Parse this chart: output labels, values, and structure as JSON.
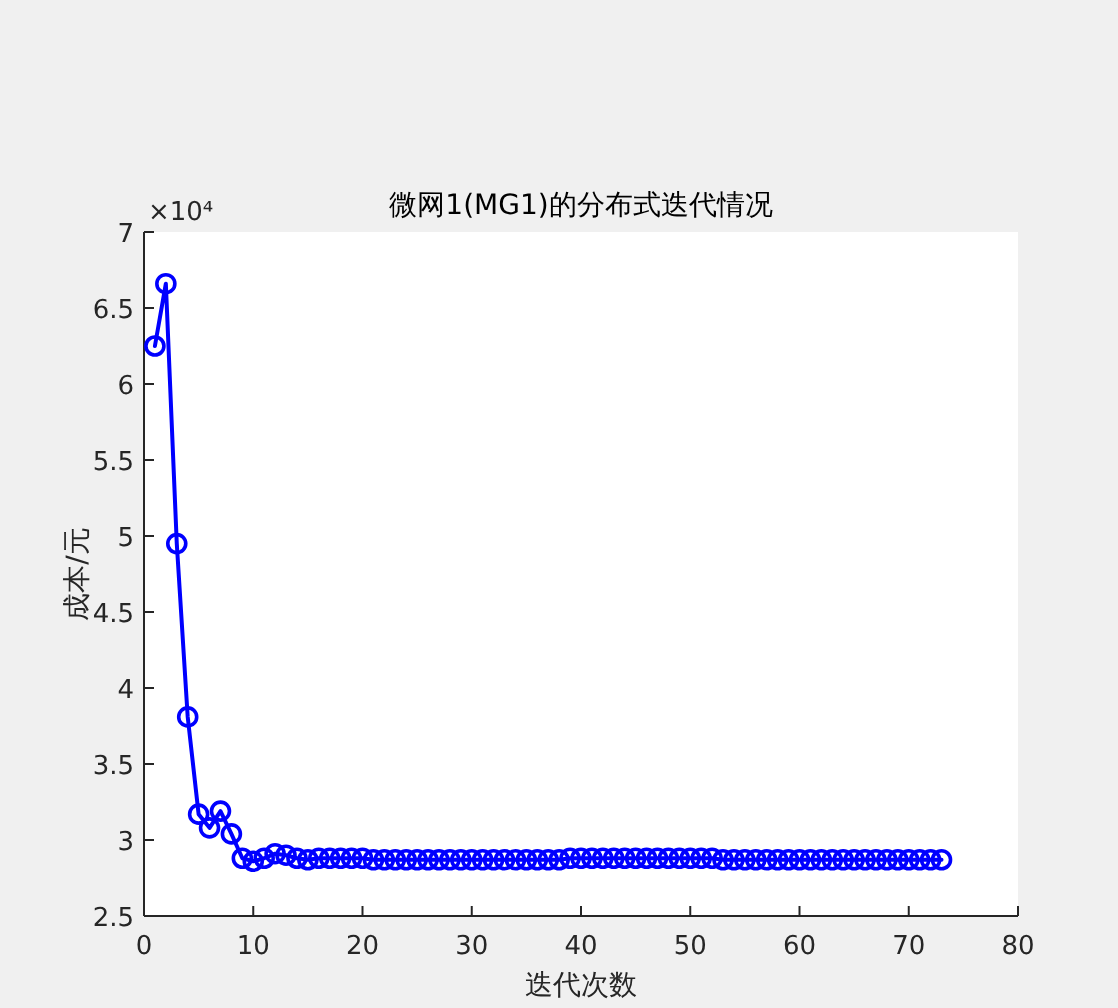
{
  "chart_data": {
    "type": "line",
    "title": "微网1(MG1)的分布式迭代情况",
    "xlabel": "迭代次数",
    "ylabel": "成本/元",
    "x": [
      1,
      2,
      3,
      4,
      5,
      6,
      7,
      8,
      9,
      10,
      11,
      12,
      13,
      14,
      15,
      16,
      17,
      18,
      19,
      20,
      21,
      22,
      23,
      24,
      25,
      26,
      27,
      28,
      29,
      30,
      31,
      32,
      33,
      34,
      35,
      36,
      37,
      38,
      39,
      40,
      41,
      42,
      43,
      44,
      45,
      46,
      47,
      48,
      49,
      50,
      51,
      52,
      53,
      54,
      55,
      56,
      57,
      58,
      59,
      60,
      61,
      62,
      63,
      64,
      65,
      66,
      67,
      68,
      69,
      70,
      71,
      72,
      73
    ],
    "series": [
      {
        "color": "#0000ff",
        "values": [
          6.25,
          6.66,
          4.95,
          3.81,
          3.17,
          3.08,
          3.19,
          3.04,
          2.88,
          2.86,
          2.88,
          2.91,
          2.9,
          2.88,
          2.87,
          2.88,
          2.88,
          2.88,
          2.88,
          2.88,
          2.87,
          2.87,
          2.87,
          2.87,
          2.87,
          2.87,
          2.87,
          2.87,
          2.87,
          2.87,
          2.87,
          2.87,
          2.87,
          2.87,
          2.87,
          2.87,
          2.87,
          2.87,
          2.88,
          2.88,
          2.88,
          2.88,
          2.88,
          2.88,
          2.88,
          2.88,
          2.88,
          2.88,
          2.88,
          2.88,
          2.88,
          2.88,
          2.87,
          2.87,
          2.87,
          2.87,
          2.87,
          2.87,
          2.87,
          2.87,
          2.87,
          2.87,
          2.87,
          2.87,
          2.87,
          2.87,
          2.87,
          2.87,
          2.87,
          2.87,
          2.87,
          2.87,
          2.87
        ]
      }
    ],
    "xlim": [
      0,
      80
    ],
    "xticks": [
      0,
      10,
      20,
      30,
      40,
      50,
      60,
      70,
      80
    ],
    "ylim": [
      2.5,
      7
    ],
    "yticks": [
      2.5,
      3,
      3.5,
      4,
      4.5,
      5,
      5.5,
      6,
      6.5,
      7
    ],
    "annotations": [
      "×10⁴"
    ],
    "marker": "circle",
    "line_style": "solid"
  }
}
